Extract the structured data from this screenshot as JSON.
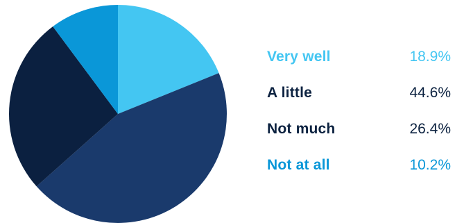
{
  "chart_data": {
    "type": "pie",
    "title": "",
    "start_angle_deg": 0,
    "direction": "clockwise",
    "legend_position": "right",
    "slices": [
      {
        "label": "Very well",
        "value": 18.9,
        "display": "18.9%",
        "color": "#44c6f2",
        "label_color": "#44c6f2",
        "value_color": "#44c6f2"
      },
      {
        "label": "A little",
        "value": 44.6,
        "display": "44.6%",
        "color": "#1a3a6c",
        "label_color": "#0c2240",
        "value_color": "#0c2240"
      },
      {
        "label": "Not much",
        "value": 26.4,
        "display": "26.4%",
        "color": "#0b2040",
        "label_color": "#0c2240",
        "value_color": "#0c2240"
      },
      {
        "label": "Not at all",
        "value": 10.2,
        "display": "10.2%",
        "color": "#0a97d8",
        "label_color": "#0a97d8",
        "value_color": "#0a97d8"
      }
    ]
  }
}
